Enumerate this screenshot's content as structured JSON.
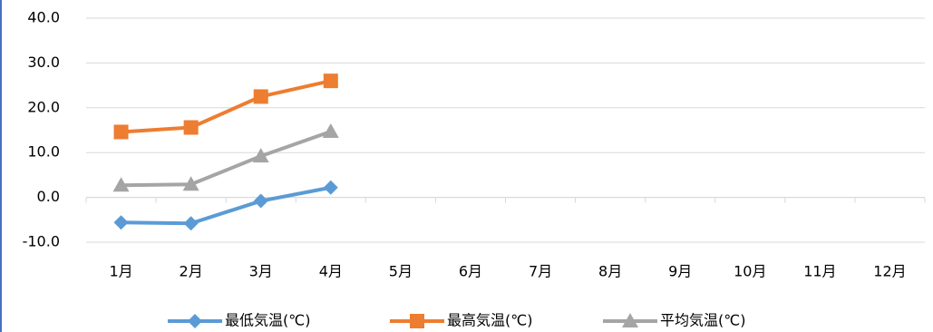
{
  "chart_data": {
    "type": "line",
    "categories": [
      "1月",
      "2月",
      "3月",
      "4月",
      "5月",
      "6月",
      "7月",
      "8月",
      "9月",
      "10月",
      "11月",
      "12月"
    ],
    "series": [
      {
        "name": "最低気温(℃)",
        "color": "#5b9bd5",
        "marker": "diamond",
        "values": [
          -5.6,
          -5.8,
          -0.8,
          2.2,
          null,
          null,
          null,
          null,
          null,
          null,
          null,
          null
        ]
      },
      {
        "name": "最高気温(℃)",
        "color": "#ed7d31",
        "marker": "square",
        "values": [
          14.6,
          15.6,
          22.5,
          26.0,
          null,
          null,
          null,
          null,
          null,
          null,
          null,
          null
        ]
      },
      {
        "name": "平均気温(℃)",
        "color": "#a5a5a5",
        "marker": "triangle",
        "values": [
          2.7,
          2.9,
          9.2,
          14.7,
          null,
          null,
          null,
          null,
          null,
          null,
          null,
          null
        ]
      }
    ],
    "ylim": [
      -10,
      40
    ],
    "yticks": [
      {
        "value": -10,
        "label": "-10.0"
      },
      {
        "value": 0,
        "label": "0.0"
      },
      {
        "value": 10,
        "label": "10.0"
      },
      {
        "value": 20,
        "label": "20.0"
      },
      {
        "value": 30,
        "label": "30.0"
      },
      {
        "value": 40,
        "label": "40.0"
      }
    ],
    "grid": true,
    "legend": "bottom"
  }
}
